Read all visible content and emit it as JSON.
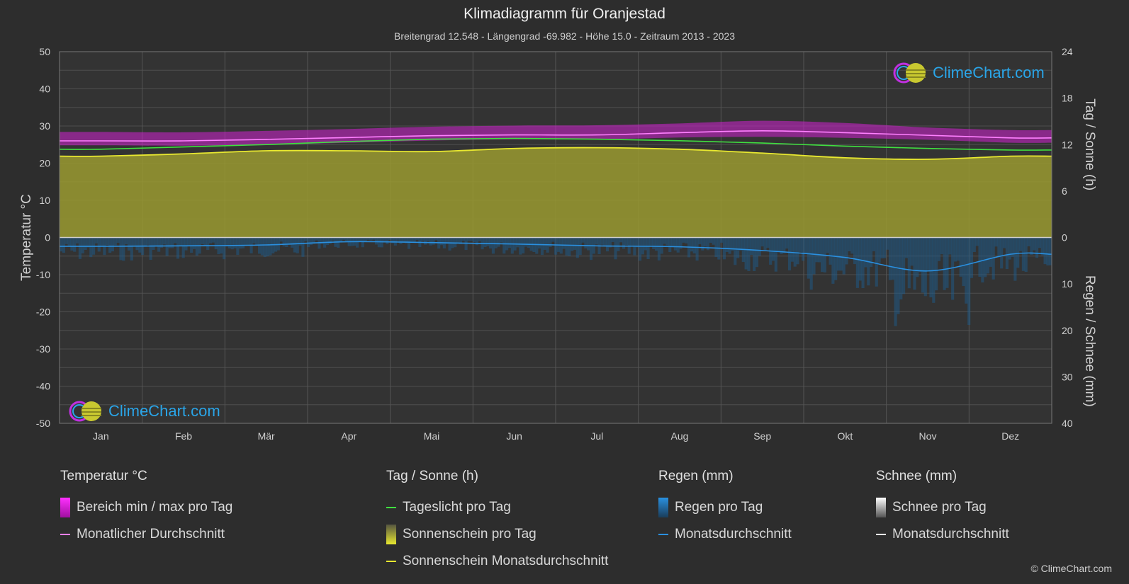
{
  "page": {
    "title": "Klimadiagramm für Oranjestad",
    "subtitle": "Breitengrad 12.548 - Längengrad -69.982 - Höhe 15.0 - Zeitraum 2013 - 2023",
    "copyright": "© ClimeChart.com",
    "logo_text": "ClimeChart.com"
  },
  "colors": {
    "background": "#2d2d2d",
    "temp_range": "#d020d0",
    "temp_avg": "#ff80ff",
    "daylight": "#40e040",
    "sunshine_fill": "#9a9a30",
    "sunshine_avg": "#e8e830",
    "rain_fill": "#1a5f95",
    "rain_avg": "#2a90e0",
    "snow_avg": "#ffffff"
  },
  "legend": {
    "temp": {
      "title": "Temperatur °C",
      "range": "Bereich min / max pro Tag",
      "avg": "Monatlicher Durchschnitt"
    },
    "sun": {
      "title": "Tag / Sonne (h)",
      "daylight": "Tageslicht pro Tag",
      "sunshine": "Sonnenschein pro Tag",
      "sunshine_avg": "Sonnenschein Monatsdurchschnitt"
    },
    "rain": {
      "title": "Regen (mm)",
      "rain": "Regen pro Tag",
      "avg": "Monatsdurchschnitt"
    },
    "snow": {
      "title": "Schnee (mm)",
      "snow": "Schnee pro Tag",
      "avg": "Monatsdurchschnitt"
    }
  },
  "chart_data": {
    "type": "line",
    "categories": [
      "Jan",
      "Feb",
      "Mär",
      "Apr",
      "Mai",
      "Jun",
      "Jul",
      "Aug",
      "Sep",
      "Okt",
      "Nov",
      "Dez"
    ],
    "y_left": {
      "label": "Temperatur °C",
      "min": -50,
      "max": 50,
      "ticks": [
        50,
        40,
        30,
        20,
        10,
        0,
        -10,
        -20,
        -30,
        -40,
        -50
      ]
    },
    "y_right_top": {
      "label": "Tag / Sonne (h)",
      "min": 0,
      "max": 24,
      "ticks": [
        24,
        18,
        12,
        6,
        0
      ]
    },
    "y_right_bottom": {
      "label": "Regen / Schnee (mm)",
      "min": 0,
      "max": 40,
      "ticks": [
        0,
        10,
        20,
        30,
        40
      ]
    },
    "grid": true,
    "series": [
      {
        "name": "Monatlicher Durchschnitt",
        "unit": "°C",
        "values": [
          26.0,
          26.0,
          26.4,
          26.9,
          27.4,
          27.6,
          27.6,
          28.2,
          28.7,
          28.2,
          27.5,
          26.8
        ]
      },
      {
        "name": "Tageslicht pro Tag",
        "unit": "h",
        "values": [
          11.4,
          11.7,
          12.0,
          12.4,
          12.7,
          12.8,
          12.7,
          12.5,
          12.2,
          11.8,
          11.5,
          11.3
        ]
      },
      {
        "name": "Sonnenschein Monatsdurchschnitt",
        "unit": "h",
        "values": [
          10.5,
          10.8,
          11.2,
          11.2,
          11.1,
          11.5,
          11.6,
          11.4,
          10.9,
          10.3,
          10.1,
          10.5
        ]
      },
      {
        "name": "Regen Monatsdurchschnitt",
        "unit": "mm",
        "values": [
          1.9,
          1.8,
          1.6,
          0.9,
          1.1,
          1.4,
          1.8,
          2.0,
          2.8,
          4.3,
          7.2,
          3.6
        ]
      }
    ],
    "temp_range_band": {
      "min": [
        24.8,
        24.7,
        25.0,
        25.5,
        26.1,
        26.4,
        26.4,
        26.9,
        27.1,
        26.8,
        26.3,
        25.5
      ],
      "max": [
        28.4,
        28.3,
        28.7,
        29.2,
        29.8,
        30.1,
        30.2,
        30.7,
        31.4,
        30.8,
        29.6,
        28.9
      ]
    }
  }
}
